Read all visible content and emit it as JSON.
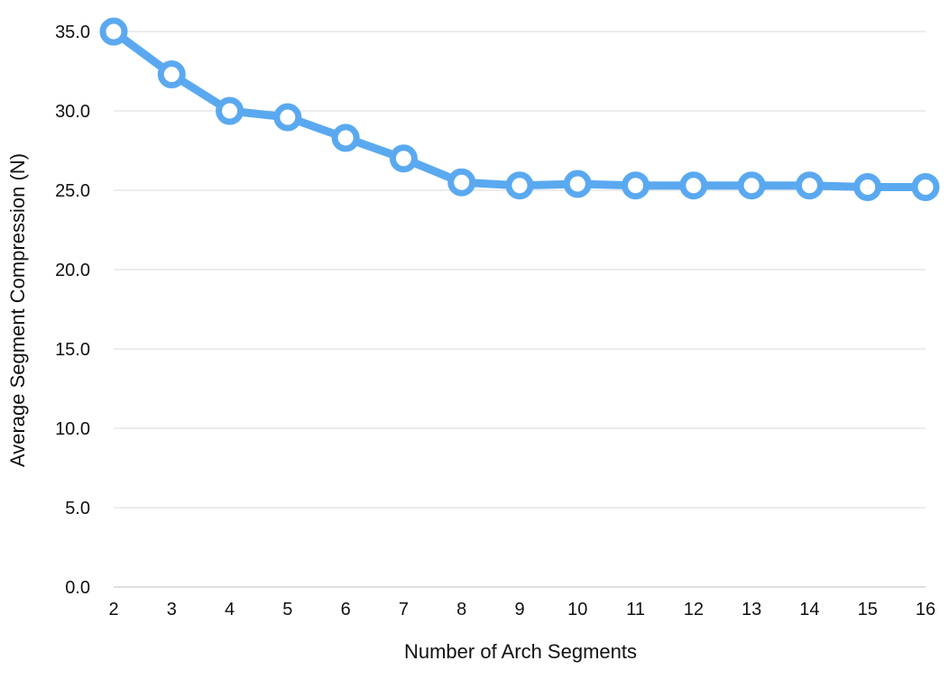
{
  "chart_data": {
    "type": "line",
    "title": "",
    "xlabel": "Number of Arch Segments",
    "ylabel": "Average Segment Compression (N)",
    "x": [
      2,
      3,
      4,
      5,
      6,
      7,
      8,
      9,
      10,
      11,
      12,
      13,
      14,
      15,
      16
    ],
    "series": [
      {
        "values": [
          35.0,
          32.3,
          30.0,
          29.6,
          28.3,
          27.0,
          25.5,
          25.3,
          25.4,
          25.3,
          25.3,
          25.3,
          25.3,
          25.2,
          25.2
        ],
        "color": "#5aa9f0"
      }
    ],
    "ylim": [
      0,
      35
    ],
    "yticks": [
      "0.0",
      "5.0",
      "10.0",
      "15.0",
      "20.0",
      "25.0",
      "30.0",
      "35.0"
    ],
    "xticks": [
      "2",
      "3",
      "4",
      "5",
      "6",
      "7",
      "8",
      "9",
      "10",
      "11",
      "12",
      "13",
      "14",
      "15",
      "16"
    ],
    "grid": true,
    "legend": "none"
  }
}
